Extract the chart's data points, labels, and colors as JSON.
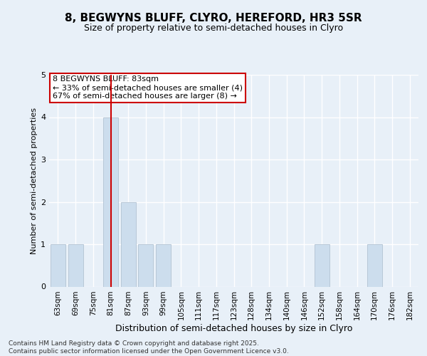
{
  "title1": "8, BEGWYNS BLUFF, CLYRO, HEREFORD, HR3 5SR",
  "title2": "Size of property relative to semi-detached houses in Clyro",
  "xlabel": "Distribution of semi-detached houses by size in Clyro",
  "ylabel": "Number of semi-detached properties",
  "categories": [
    "63sqm",
    "69sqm",
    "75sqm",
    "81sqm",
    "87sqm",
    "93sqm",
    "99sqm",
    "105sqm",
    "111sqm",
    "117sqm",
    "123sqm",
    "128sqm",
    "134sqm",
    "140sqm",
    "146sqm",
    "152sqm",
    "158sqm",
    "164sqm",
    "170sqm",
    "176sqm",
    "182sqm"
  ],
  "values": [
    1,
    1,
    0,
    4,
    2,
    1,
    1,
    0,
    0,
    0,
    0,
    0,
    0,
    0,
    0,
    1,
    0,
    0,
    1,
    0,
    0
  ],
  "bar_color": "#ccdded",
  "bar_edge_color": "#aabbcc",
  "highlight_index": 3,
  "highlight_color": "#cc0000",
  "ylim": [
    0,
    5
  ],
  "yticks": [
    0,
    1,
    2,
    3,
    4,
    5
  ],
  "annotation_text": "8 BEGWYNS BLUFF: 83sqm\n← 33% of semi-detached houses are smaller (4)\n67% of semi-detached houses are larger (8) →",
  "annotation_box_color": "#ffffff",
  "annotation_box_edge_color": "#cc0000",
  "footer_text": "Contains HM Land Registry data © Crown copyright and database right 2025.\nContains public sector information licensed under the Open Government Licence v3.0.",
  "background_color": "#e8f0f8",
  "plot_bg_color": "#e8f0f8",
  "grid_color": "#ffffff",
  "title1_fontsize": 11,
  "title2_fontsize": 9,
  "xlabel_fontsize": 9,
  "ylabel_fontsize": 8,
  "tick_fontsize": 7.5,
  "footer_fontsize": 6.5
}
